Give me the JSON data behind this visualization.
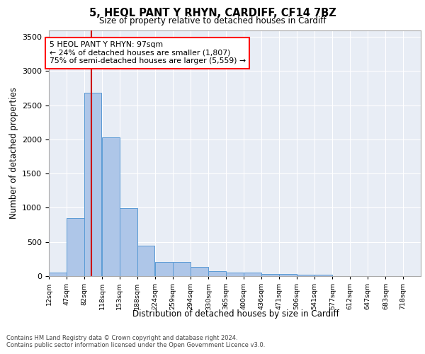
{
  "title": "5, HEOL PANT Y RHYN, CARDIFF, CF14 7BZ",
  "subtitle": "Size of property relative to detached houses in Cardiff",
  "xlabel": "Distribution of detached houses by size in Cardiff",
  "ylabel": "Number of detached properties",
  "annotation_lines": [
    "5 HEOL PANT Y RHYN: 97sqm",
    "← 24% of detached houses are smaller (1,807)",
    "75% of semi-detached houses are larger (5,559) →"
  ],
  "property_size": 97,
  "bin_labels": [
    "12sqm",
    "47sqm",
    "82sqm",
    "118sqm",
    "153sqm",
    "188sqm",
    "224sqm",
    "259sqm",
    "294sqm",
    "330sqm",
    "365sqm",
    "400sqm",
    "436sqm",
    "471sqm",
    "506sqm",
    "541sqm",
    "577sqm",
    "612sqm",
    "647sqm",
    "683sqm",
    "718sqm"
  ],
  "bin_edges": [
    12,
    47,
    82,
    118,
    153,
    188,
    224,
    259,
    294,
    330,
    365,
    400,
    436,
    471,
    506,
    541,
    577,
    612,
    647,
    683,
    718
  ],
  "bar_values": [
    55,
    850,
    2680,
    2030,
    990,
    450,
    205,
    205,
    130,
    70,
    55,
    55,
    35,
    35,
    25,
    25,
    0,
    0,
    0,
    0
  ],
  "bar_facecolor": "#aec6e8",
  "bar_edgecolor": "#5b9bd5",
  "redline_color": "#cc0000",
  "ylim": [
    0,
    3600
  ],
  "yticks": [
    0,
    500,
    1000,
    1500,
    2000,
    2500,
    3000,
    3500
  ],
  "background_color": "#e8edf5",
  "grid_color": "#ffffff",
  "footer_line1": "Contains HM Land Registry data © Crown copyright and database right 2024.",
  "footer_line2": "Contains public sector information licensed under the Open Government Licence v3.0."
}
